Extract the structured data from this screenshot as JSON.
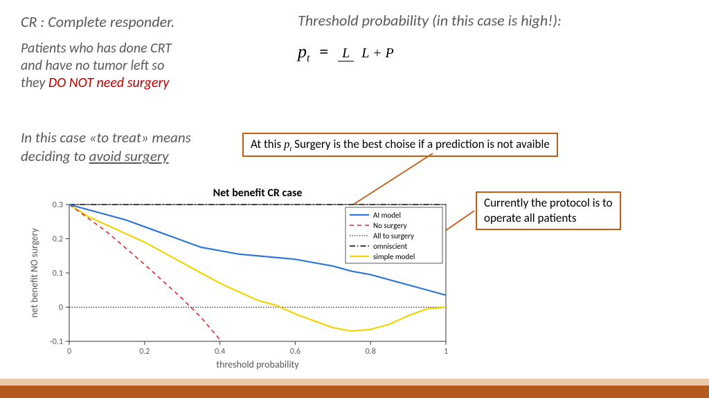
{
  "left": {
    "cr_heading": "CR : Complete responder.",
    "cr_desc_line1": "Patients who has done CRT",
    "cr_desc_line2": "and have no tumor left so",
    "cr_desc_line3_prefix": "they ",
    "cr_desc_line3_red": "DO NOT need surgery",
    "treat_line1": "In this case «to treat» means",
    "treat_line2_prefix": "deciding to ",
    "treat_line2_underline": "avoid surgery"
  },
  "right": {
    "threshold_title": "Threshold probability (in this case is high!):",
    "formula_lhs": "p",
    "formula_sub": "t",
    "formula_num": "L",
    "formula_den": "L + P"
  },
  "callouts": {
    "c1_prefix": "At this ",
    "c1_pt": "p",
    "c1_pt_sub": "t",
    "c1_suffix": " Surgery is the best choise if a prediction is not avaible",
    "c2_line1": "Currently the protocol is to",
    "c2_line2": "operate all patients"
  },
  "chart": {
    "title": "Net benefit CR case",
    "xlabel": "threshold probability",
    "ylabel": "net benefit NO surgery",
    "xlim": [
      0,
      1
    ],
    "ylim": [
      -0.1,
      0.3
    ],
    "xticks": [
      0,
      0.2,
      0.4,
      0.6,
      0.8,
      1
    ],
    "yticks": [
      -0.1,
      0,
      0.1,
      0.2,
      0.3
    ],
    "bg": "#ffffff",
    "axis_color": "#333333",
    "grid": false,
    "legend_pos": "upper-right",
    "legend_bg": "#ffffff",
    "legend_border": "#333333",
    "series": {
      "ai": {
        "label": "AI model",
        "color": "#2e75d6",
        "width": 2.2,
        "dash": "none",
        "x": [
          0,
          0.05,
          0.1,
          0.15,
          0.2,
          0.25,
          0.3,
          0.35,
          0.4,
          0.45,
          0.5,
          0.55,
          0.6,
          0.65,
          0.7,
          0.75,
          0.8,
          0.85,
          0.9,
          0.95,
          1
        ],
        "y": [
          0.3,
          0.285,
          0.27,
          0.255,
          0.235,
          0.215,
          0.195,
          0.175,
          0.165,
          0.155,
          0.15,
          0.145,
          0.14,
          0.13,
          0.12,
          0.105,
          0.095,
          0.08,
          0.065,
          0.05,
          0.035
        ]
      },
      "no_surgery": {
        "label": "No surgery",
        "color": "#d62728",
        "width": 1.6,
        "dash": "6,5",
        "x": [
          0,
          0.1,
          0.2,
          0.3,
          0.35,
          0.4
        ],
        "y": [
          0.3,
          0.22,
          0.125,
          0.025,
          -0.03,
          -0.095
        ]
      },
      "all_surgery": {
        "label": "All to surgery",
        "color": "#000000",
        "width": 1,
        "dash": "1.5,2",
        "x": [
          0,
          1
        ],
        "y": [
          0,
          0
        ]
      },
      "omniscient": {
        "label": "omniscient",
        "color": "#000000",
        "width": 1.6,
        "dash": "8,3,1.5,3",
        "x": [
          0,
          1
        ],
        "y": [
          0.3,
          0.3
        ]
      },
      "simple": {
        "label": "simple model",
        "color": "#f2d400",
        "width": 2.2,
        "dash": "none",
        "x": [
          0,
          0.05,
          0.1,
          0.15,
          0.2,
          0.25,
          0.3,
          0.35,
          0.4,
          0.45,
          0.5,
          0.55,
          0.6,
          0.65,
          0.7,
          0.75,
          0.8,
          0.85,
          0.9,
          0.95,
          1
        ],
        "y": [
          0.3,
          0.265,
          0.24,
          0.215,
          0.19,
          0.16,
          0.13,
          0.1,
          0.07,
          0.045,
          0.02,
          0.005,
          -0.02,
          -0.04,
          -0.06,
          -0.07,
          -0.065,
          -0.05,
          -0.025,
          -0.005,
          0
        ]
      }
    }
  },
  "footer": {
    "top_color": "#e9c9a8",
    "bottom_color": "#b45a1f"
  },
  "connector_color": "#c55a11"
}
